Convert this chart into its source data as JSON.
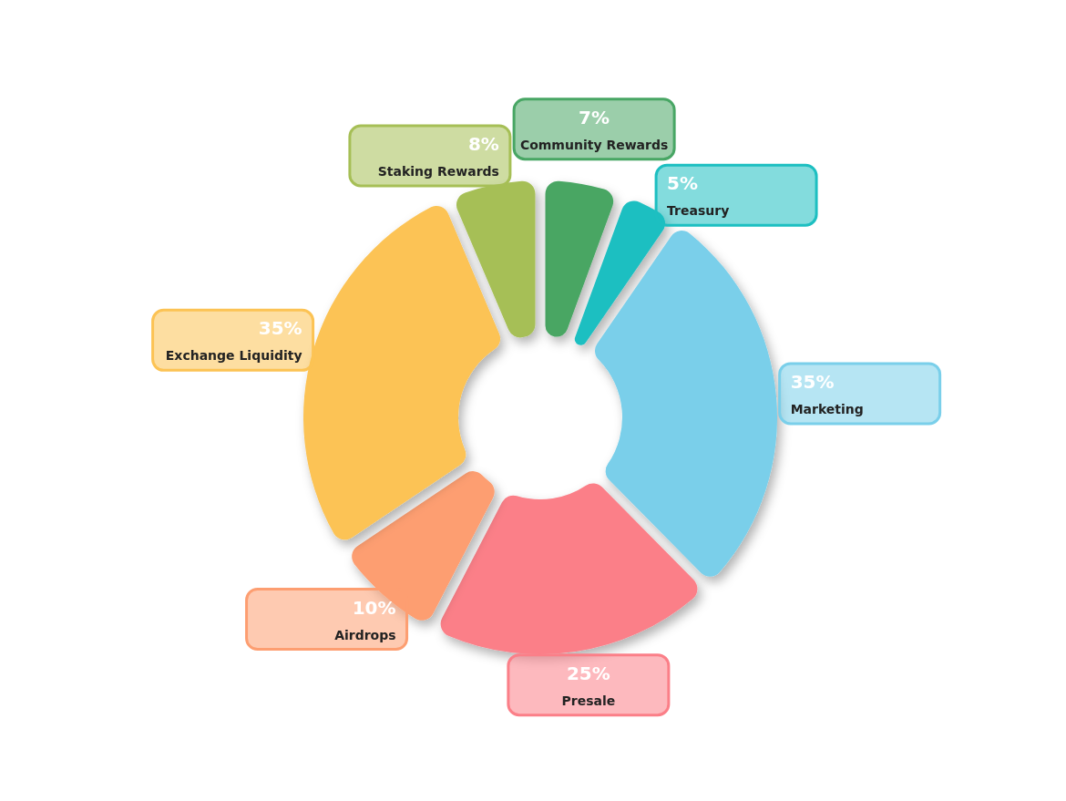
{
  "chart_data": {
    "type": "donut",
    "categories": [
      "Community Rewards",
      "Treasury",
      "Marketing",
      "Presale",
      "Airdrops",
      "Exchange Liquidity",
      "Staking Rewards"
    ],
    "values": [
      7,
      5,
      35,
      25,
      10,
      35,
      8
    ],
    "value_labels": [
      "7%",
      "5%",
      "35%",
      "25%",
      "10%",
      "35%",
      "8%"
    ],
    "colors": [
      "#48a664",
      "#1dbfc1",
      "#7acfea",
      "#fb7f88",
      "#fd9e71",
      "#fcc354",
      "#a6bf56"
    ]
  }
}
